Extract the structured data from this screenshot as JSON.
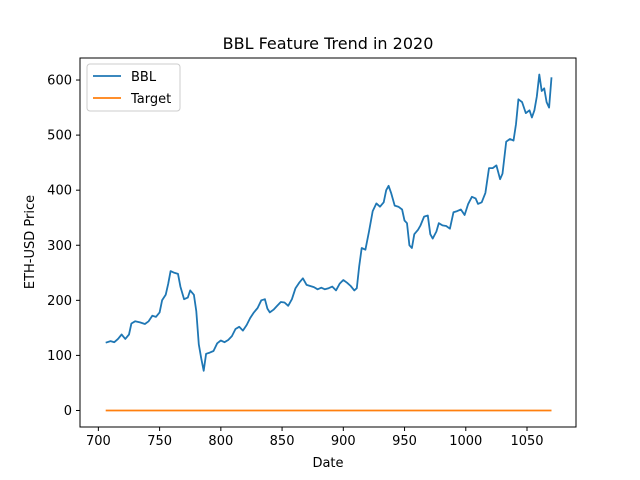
{
  "chart_data": {
    "type": "line",
    "title": "BBL Feature Trend in 2020",
    "xlabel": "Date",
    "ylabel": "ETH-USD Price",
    "xlim": [
      685,
      1090
    ],
    "ylim": [
      -30,
      640
    ],
    "xticks": [
      700,
      750,
      800,
      850,
      900,
      950,
      1000,
      1050
    ],
    "yticks": [
      0,
      100,
      200,
      300,
      400,
      500,
      600
    ],
    "grid": false,
    "legend_position": "top-left",
    "series": [
      {
        "name": "BBL",
        "color": "#1f77b4",
        "points": [
          [
            706,
            123
          ],
          [
            710,
            126
          ],
          [
            713,
            124
          ],
          [
            716,
            130
          ],
          [
            719,
            138
          ],
          [
            722,
            130
          ],
          [
            725,
            138
          ],
          [
            727,
            158
          ],
          [
            730,
            162
          ],
          [
            734,
            160
          ],
          [
            738,
            157
          ],
          [
            741,
            162
          ],
          [
            744,
            172
          ],
          [
            747,
            170
          ],
          [
            750,
            178
          ],
          [
            752,
            200
          ],
          [
            755,
            210
          ],
          [
            757,
            230
          ],
          [
            759,
            253
          ],
          [
            762,
            250
          ],
          [
            765,
            248
          ],
          [
            767,
            225
          ],
          [
            770,
            202
          ],
          [
            773,
            205
          ],
          [
            775,
            218
          ],
          [
            778,
            210
          ],
          [
            780,
            180
          ],
          [
            782,
            120
          ],
          [
            784,
            95
          ],
          [
            786,
            72
          ],
          [
            788,
            103
          ],
          [
            791,
            105
          ],
          [
            794,
            108
          ],
          [
            797,
            122
          ],
          [
            800,
            127
          ],
          [
            803,
            124
          ],
          [
            806,
            128
          ],
          [
            809,
            135
          ],
          [
            812,
            148
          ],
          [
            815,
            152
          ],
          [
            818,
            145
          ],
          [
            821,
            155
          ],
          [
            824,
            168
          ],
          [
            827,
            178
          ],
          [
            830,
            186
          ],
          [
            833,
            200
          ],
          [
            836,
            202
          ],
          [
            838,
            185
          ],
          [
            840,
            178
          ],
          [
            843,
            183
          ],
          [
            846,
            190
          ],
          [
            849,
            197
          ],
          [
            852,
            196
          ],
          [
            855,
            190
          ],
          [
            858,
            202
          ],
          [
            861,
            222
          ],
          [
            864,
            232
          ],
          [
            867,
            240
          ],
          [
            870,
            228
          ],
          [
            873,
            226
          ],
          [
            876,
            224
          ],
          [
            879,
            220
          ],
          [
            882,
            223
          ],
          [
            885,
            220
          ],
          [
            888,
            222
          ],
          [
            891,
            225
          ],
          [
            894,
            218
          ],
          [
            897,
            230
          ],
          [
            900,
            237
          ],
          [
            903,
            232
          ],
          [
            906,
            226
          ],
          [
            909,
            218
          ],
          [
            911,
            222
          ],
          [
            913,
            262
          ],
          [
            915,
            295
          ],
          [
            918,
            292
          ],
          [
            921,
            325
          ],
          [
            924,
            362
          ],
          [
            927,
            376
          ],
          [
            930,
            370
          ],
          [
            933,
            378
          ],
          [
            935,
            400
          ],
          [
            937,
            408
          ],
          [
            939,
            395
          ],
          [
            942,
            372
          ],
          [
            945,
            370
          ],
          [
            948,
            365
          ],
          [
            950,
            345
          ],
          [
            952,
            340
          ],
          [
            954,
            300
          ],
          [
            956,
            295
          ],
          [
            958,
            320
          ],
          [
            961,
            328
          ],
          [
            963,
            336
          ],
          [
            966,
            352
          ],
          [
            969,
            354
          ],
          [
            971,
            320
          ],
          [
            973,
            312
          ],
          [
            976,
            325
          ],
          [
            978,
            340
          ],
          [
            981,
            336
          ],
          [
            984,
            335
          ],
          [
            987,
            330
          ],
          [
            990,
            360
          ],
          [
            993,
            362
          ],
          [
            996,
            365
          ],
          [
            999,
            355
          ],
          [
            1002,
            375
          ],
          [
            1005,
            388
          ],
          [
            1008,
            385
          ],
          [
            1010,
            375
          ],
          [
            1013,
            378
          ],
          [
            1016,
            395
          ],
          [
            1019,
            440
          ],
          [
            1022,
            440
          ],
          [
            1025,
            445
          ],
          [
            1028,
            420
          ],
          [
            1030,
            430
          ],
          [
            1033,
            488
          ],
          [
            1036,
            493
          ],
          [
            1039,
            490
          ],
          [
            1041,
            520
          ],
          [
            1043,
            565
          ],
          [
            1046,
            560
          ],
          [
            1049,
            540
          ],
          [
            1052,
            545
          ],
          [
            1054,
            532
          ],
          [
            1056,
            545
          ],
          [
            1058,
            570
          ],
          [
            1060,
            610
          ],
          [
            1062,
            580
          ],
          [
            1064,
            585
          ],
          [
            1066,
            560
          ],
          [
            1068,
            550
          ],
          [
            1070,
            605
          ]
        ]
      },
      {
        "name": "Target",
        "color": "#ff7f0e",
        "points": [
          [
            706,
            0
          ],
          [
            1070,
            0
          ]
        ]
      }
    ]
  }
}
